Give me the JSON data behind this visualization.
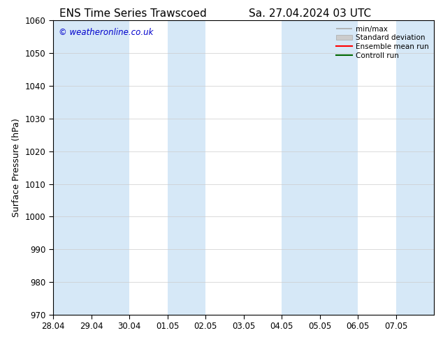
{
  "title_left": "ENS Time Series Trawscoed",
  "title_right": "Sa. 27.04.2024 03 UTC",
  "ylabel": "Surface Pressure (hPa)",
  "ylim": [
    970,
    1060
  ],
  "yticks": [
    970,
    980,
    990,
    1000,
    1010,
    1020,
    1030,
    1040,
    1050,
    1060
  ],
  "xtick_labels": [
    "28.04",
    "29.04",
    "30.04",
    "01.05",
    "02.05",
    "03.05",
    "04.05",
    "05.05",
    "06.05",
    "07.05"
  ],
  "watermark": "© weatheronline.co.uk",
  "watermark_color": "#0000cc",
  "background_color": "#ffffff",
  "plot_bg_color": "#ffffff",
  "shaded_columns": [
    0,
    1,
    3,
    6,
    7,
    9
  ],
  "shaded_color": "#d6e8f7",
  "legend_entries": [
    "min/max",
    "Standard deviation",
    "Ensemble mean run",
    "Controll run"
  ],
  "legend_line_colors": [
    "#aaaaaa",
    "#bbbbbb",
    "#ff0000",
    "#006600"
  ],
  "title_fontsize": 11,
  "axis_label_fontsize": 9,
  "tick_fontsize": 8.5,
  "n_columns": 10,
  "spine_color": "#000000",
  "tick_color": "#000000"
}
